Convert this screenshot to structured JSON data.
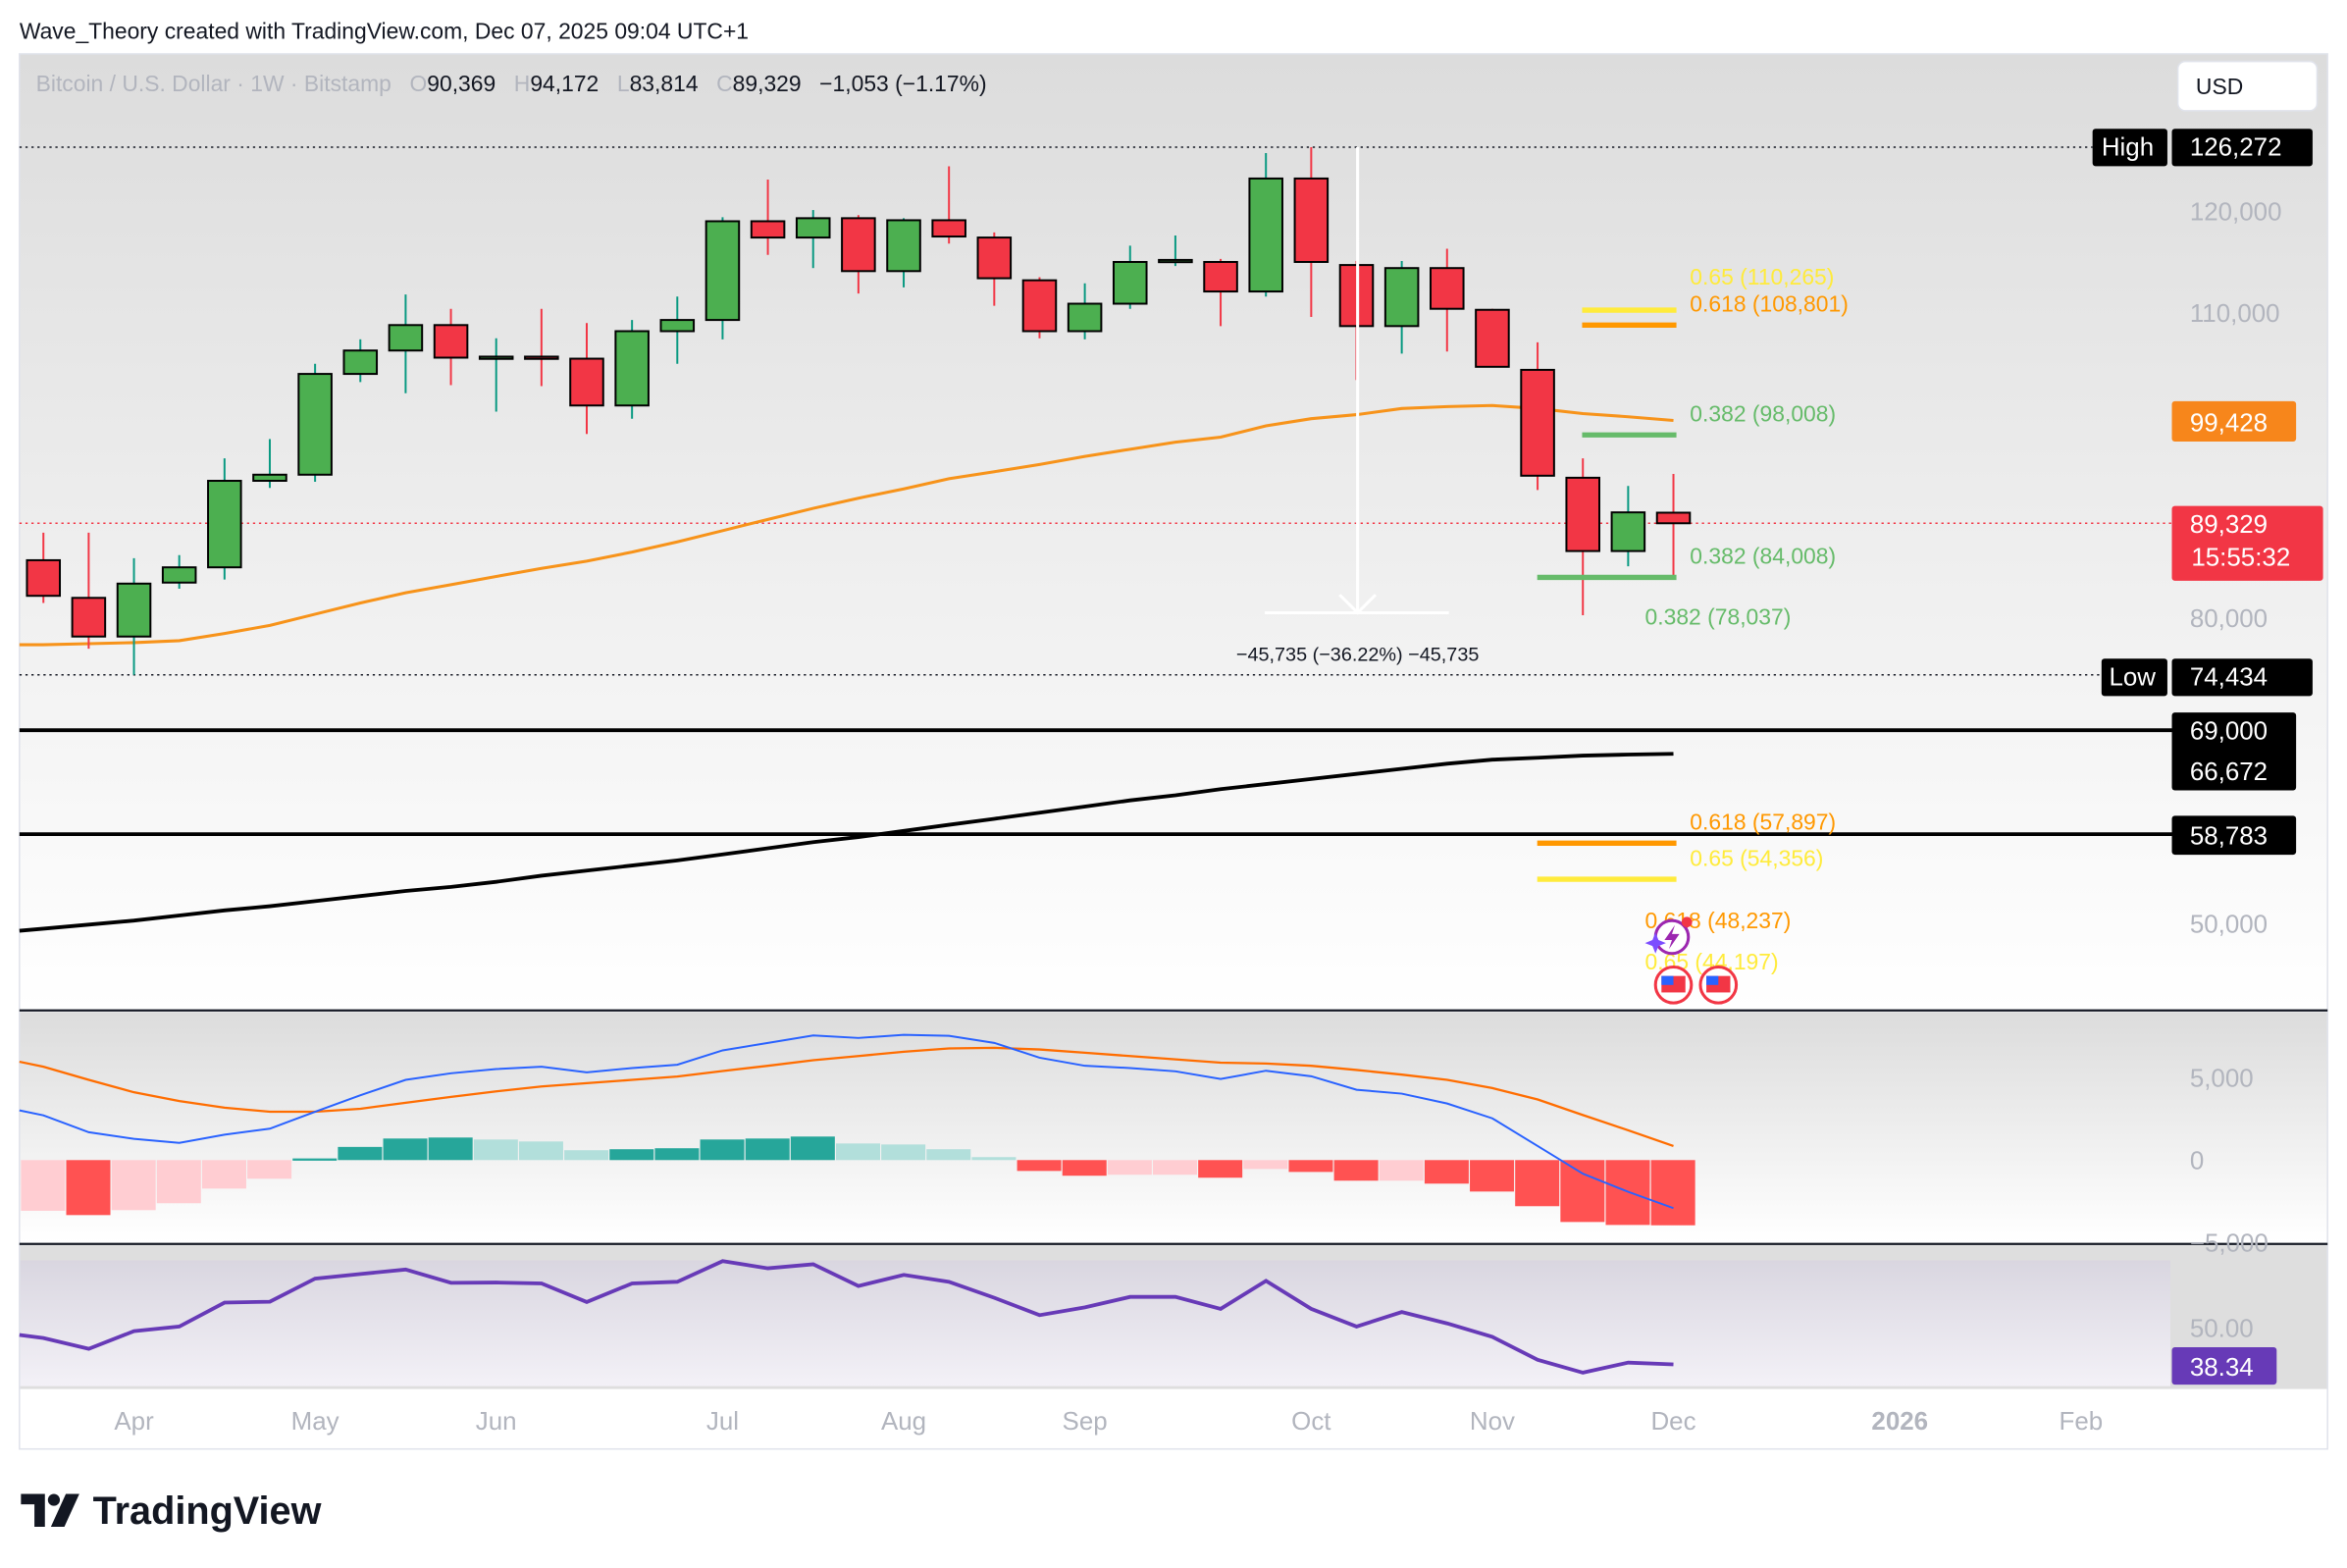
{
  "attribution": "Wave_Theory created with TradingView.com, Dec 07, 2025 09:04 UTC+1",
  "header": {
    "symbol": "Bitcoin / U.S. Dollar · 1W · Bitstamp",
    "o_label": "O",
    "o": "90,369",
    "h_label": "H",
    "h": "94,172",
    "l_label": "L",
    "l": "83,814",
    "c_label": "C",
    "c": "89,329",
    "change": "−1,053 (−1.17%)"
  },
  "currency_button": "USD",
  "logo": "TradingView",
  "colors": {
    "up": "#4caf50",
    "down": "#f23645",
    "up_wick": "#089981",
    "ma_orange": "#f7931a",
    "ma_black": "#000000",
    "macd": "#2962ff",
    "signal": "#ff6d00",
    "rsi": "#673ab7",
    "hist_up_strong": "#26a69a",
    "hist_up_weak": "#b2dfdb",
    "hist_down_strong": "#ff5252",
    "hist_down_weak": "#ffcdd2"
  },
  "badges": {
    "high_label": "High",
    "high": "126,272",
    "low_label": "Low",
    "low": "74,434",
    "ma_orange": "99,428",
    "last_price": "89,329",
    "countdown": "15:55:32",
    "level_69000": "69,000",
    "ma_black": "66,672",
    "level_58783": "58,783",
    "rsi": "38.34"
  },
  "measure_label": "−45,735 (−36.22%) −45,735",
  "chart_data": [
    {
      "type": "candlestick",
      "title": "Bitcoin / U.S. Dollar · 1W · Bitstamp",
      "x": [
        "2025-03-24",
        "2025-03-31",
        "2025-04-07",
        "2025-04-14",
        "2025-04-21",
        "2025-04-28",
        "2025-05-05",
        "2025-05-12",
        "2025-05-19",
        "2025-05-26",
        "2025-06-02",
        "2025-06-09",
        "2025-06-16",
        "2025-06-23",
        "2025-06-30",
        "2025-07-07",
        "2025-07-14",
        "2025-07-21",
        "2025-07-28",
        "2025-08-04",
        "2025-08-11",
        "2025-08-18",
        "2025-08-25",
        "2025-09-01",
        "2025-09-08",
        "2025-09-15",
        "2025-09-22",
        "2025-09-29",
        "2025-10-06",
        "2025-10-13",
        "2025-10-20",
        "2025-10-27",
        "2025-11-03",
        "2025-11-10",
        "2025-11-17",
        "2025-11-24",
        "2025-12-01"
      ],
      "open": [
        85700,
        82000,
        78200,
        83500,
        85000,
        93500,
        94100,
        104000,
        106300,
        108800,
        105600,
        105700,
        105500,
        100900,
        108200,
        109300,
        119000,
        117400,
        119300,
        114100,
        119100,
        117400,
        113200,
        108200,
        110900,
        115000,
        115000,
        112100,
        123200,
        114700,
        108700,
        114400,
        110300,
        104400,
        93800,
        86600,
        90369
      ],
      "high": [
        88400,
        88400,
        85900,
        86200,
        95700,
        97600,
        105000,
        107400,
        111800,
        110400,
        107500,
        110400,
        109000,
        109300,
        111600,
        119400,
        123100,
        120100,
        119600,
        119300,
        124400,
        117900,
        113500,
        112900,
        116600,
        117600,
        115300,
        125700,
        126272,
        115100,
        115100,
        116300,
        110400,
        107100,
        95700,
        93000,
        94172
      ],
      "low": [
        81500,
        77000,
        74434,
        82900,
        83800,
        92800,
        93400,
        103200,
        102100,
        102900,
        100300,
        102800,
        98100,
        99600,
        105000,
        107400,
        115700,
        114400,
        111900,
        112500,
        116800,
        110700,
        107500,
        107400,
        110400,
        114600,
        108700,
        111600,
        109600,
        103400,
        106000,
        106200,
        104700,
        92600,
        80300,
        85100,
        83814
      ],
      "close": [
        82200,
        78200,
        83400,
        85000,
        93500,
        94100,
        104000,
        106300,
        108800,
        105600,
        105700,
        105500,
        100900,
        108200,
        109300,
        119000,
        117400,
        119300,
        114100,
        119100,
        117500,
        113400,
        108200,
        110900,
        115000,
        115200,
        112100,
        123200,
        115000,
        108700,
        114400,
        110400,
        104700,
        94000,
        86600,
        90400,
        89329
      ],
      "ma_orange": [
        77400,
        77500,
        77600,
        77800,
        78500,
        79300,
        80400,
        81500,
        82500,
        83300,
        84100,
        84900,
        85600,
        86500,
        87500,
        88600,
        89700,
        90800,
        91800,
        92700,
        93700,
        94400,
        95100,
        95900,
        96600,
        97300,
        97800,
        98900,
        99600,
        100000,
        100600,
        100800,
        100900,
        100600,
        100100,
        99800,
        99428
      ],
      "ma_black": [
        49500,
        49900,
        50300,
        50800,
        51300,
        51700,
        52200,
        52700,
        53200,
        53600,
        54100,
        54700,
        55200,
        55700,
        56200,
        56800,
        57400,
        58000,
        58500,
        59100,
        59700,
        60300,
        60900,
        61500,
        62100,
        62600,
        63200,
        63700,
        64200,
        64700,
        65200,
        65700,
        66100,
        66300,
        66500,
        66600,
        66672
      ],
      "y_ticks": [
        "120,000",
        "110,000",
        "80,000",
        "50,000"
      ],
      "y_tick_values": [
        120000,
        110000,
        80000,
        50000
      ],
      "ylim": [
        37000,
        133000
      ],
      "high_line": 126272,
      "low_line": 74434,
      "last_line": 89329,
      "horizontal_levels": [
        69000,
        58783
      ],
      "fib_levels": [
        {
          "label": "0.65 (110,265)",
          "price": 110265,
          "color": "#ffeb3b",
          "line": "short"
        },
        {
          "label": "0.618 (108,801)",
          "price": 108801,
          "color": "#ff9800",
          "line": "short"
        },
        {
          "label": "0.382 (98,008)",
          "price": 98008,
          "color": "#66bb6a",
          "line": "short"
        },
        {
          "label": "0.382 (84,008)",
          "price": 84008,
          "color": "#66bb6a",
          "line": "long"
        },
        {
          "label": "0.382 (78,037)",
          "price": 78037,
          "color": "#66bb6a",
          "line": "none"
        },
        {
          "label": "0.618 (57,897)",
          "price": 57897,
          "color": "#ff9800",
          "line": "long"
        },
        {
          "label": "0.65 (54,356)",
          "price": 54356,
          "color": "#ffeb3b",
          "line": "long"
        },
        {
          "label": "0.618 (48,237)",
          "price": 48237,
          "color": "#ff9800",
          "line": "none"
        },
        {
          "label": "0.65 (44,197)",
          "price": 44197,
          "color": "#ffeb3b",
          "line": "none"
        }
      ],
      "measure": {
        "from": 126272,
        "to": 80537,
        "label": "−45,735 (−36.22%) −45,735"
      },
      "x_ticks": [
        "Apr",
        "May",
        "Jun",
        "Jul",
        "Aug",
        "Sep",
        "Oct",
        "Nov",
        "Dec",
        "2026",
        "Feb"
      ],
      "x_tick_positions_week_index": [
        2,
        6,
        10,
        15,
        19,
        23,
        28,
        32,
        36,
        41,
        45
      ]
    },
    {
      "type": "macd",
      "histogram": [
        -3080,
        -3340,
        -3040,
        -2620,
        -1730,
        -1130,
        100,
        800,
        1310,
        1370,
        1250,
        1130,
        600,
        660,
        720,
        1250,
        1310,
        1430,
        1010,
        950,
        660,
        180,
        -660,
        -950,
        -890,
        -890,
        -1070,
        -540,
        -720,
        -1250,
        -1250,
        -1430,
        -1910,
        -2800,
        -3760,
        -3940,
        -3960
      ],
      "macd": [
        2720,
        1690,
        1290,
        1050,
        1550,
        1910,
        2940,
        3940,
        4870,
        5270,
        5530,
        5670,
        5330,
        5590,
        5790,
        6660,
        7120,
        7570,
        7420,
        7610,
        7550,
        7120,
        6220,
        5730,
        5590,
        5390,
        4930,
        5430,
        5090,
        4270,
        4040,
        3440,
        2540,
        850,
        -830,
        -1930,
        -2920
      ],
      "signal": [
        5670,
        4870,
        4120,
        3580,
        3180,
        2940,
        2940,
        3120,
        3480,
        3840,
        4170,
        4470,
        4670,
        4870,
        5070,
        5410,
        5730,
        6060,
        6320,
        6580,
        6780,
        6820,
        6720,
        6520,
        6320,
        6120,
        5920,
        5860,
        5730,
        5470,
        5190,
        4870,
        4370,
        3680,
        2740,
        1810,
        850
      ],
      "y_ticks": [
        "5,000",
        "0",
        "−5,000"
      ],
      "y_tick_values": [
        5000,
        0,
        -5000
      ]
    },
    {
      "type": "line",
      "series": [
        {
          "values": [
            46.7,
            43.3,
            48.9,
            50.4,
            58.0,
            58.3,
            65.6,
            67.1,
            68.5,
            64.3,
            64.4,
            64.1,
            58.2,
            64.1,
            64.6,
            71.2,
            68.9,
            70.2,
            63.3,
            66.8,
            64.6,
            59.5,
            54.0,
            56.5,
            59.8,
            59.8,
            56.0,
            64.9,
            56.0,
            50.4,
            55.0,
            51.4,
            47.1,
            39.8,
            35.7,
            38.9,
            38.34
          ]
        }
      ],
      "band": [
        30,
        70
      ],
      "y_ticks": [
        "50.00"
      ],
      "y_tick_values": [
        50
      ]
    }
  ]
}
